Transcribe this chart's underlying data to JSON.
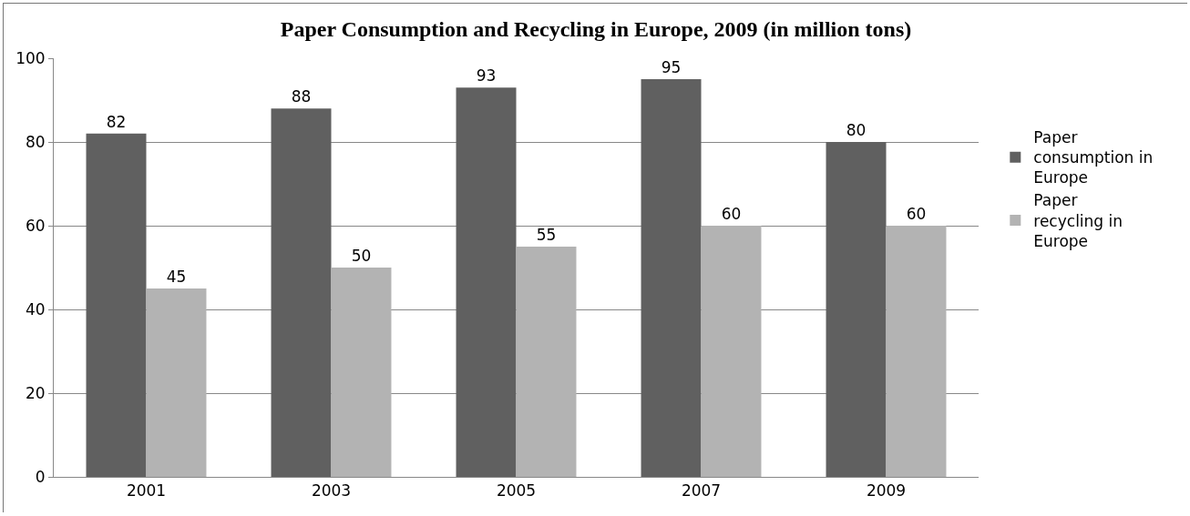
{
  "chart_data": {
    "type": "bar",
    "title": "Paper Consumption and Recycling in Europe, 2009 (in million tons)",
    "categories": [
      "2001",
      "2003",
      "2005",
      "2007",
      "2009"
    ],
    "series": [
      {
        "name": "Paper consumption in Europe",
        "color": "#606060",
        "values": [
          82,
          88,
          93,
          95,
          80
        ]
      },
      {
        "name": "Paper recycling in Europe",
        "color": "#b3b3b3",
        "values": [
          45,
          50,
          55,
          60,
          60
        ]
      }
    ],
    "ylim": [
      0,
      100
    ],
    "yticks": [
      0,
      20,
      40,
      60,
      80,
      100
    ],
    "grid": "y",
    "legend": "right",
    "data_labels": true
  }
}
